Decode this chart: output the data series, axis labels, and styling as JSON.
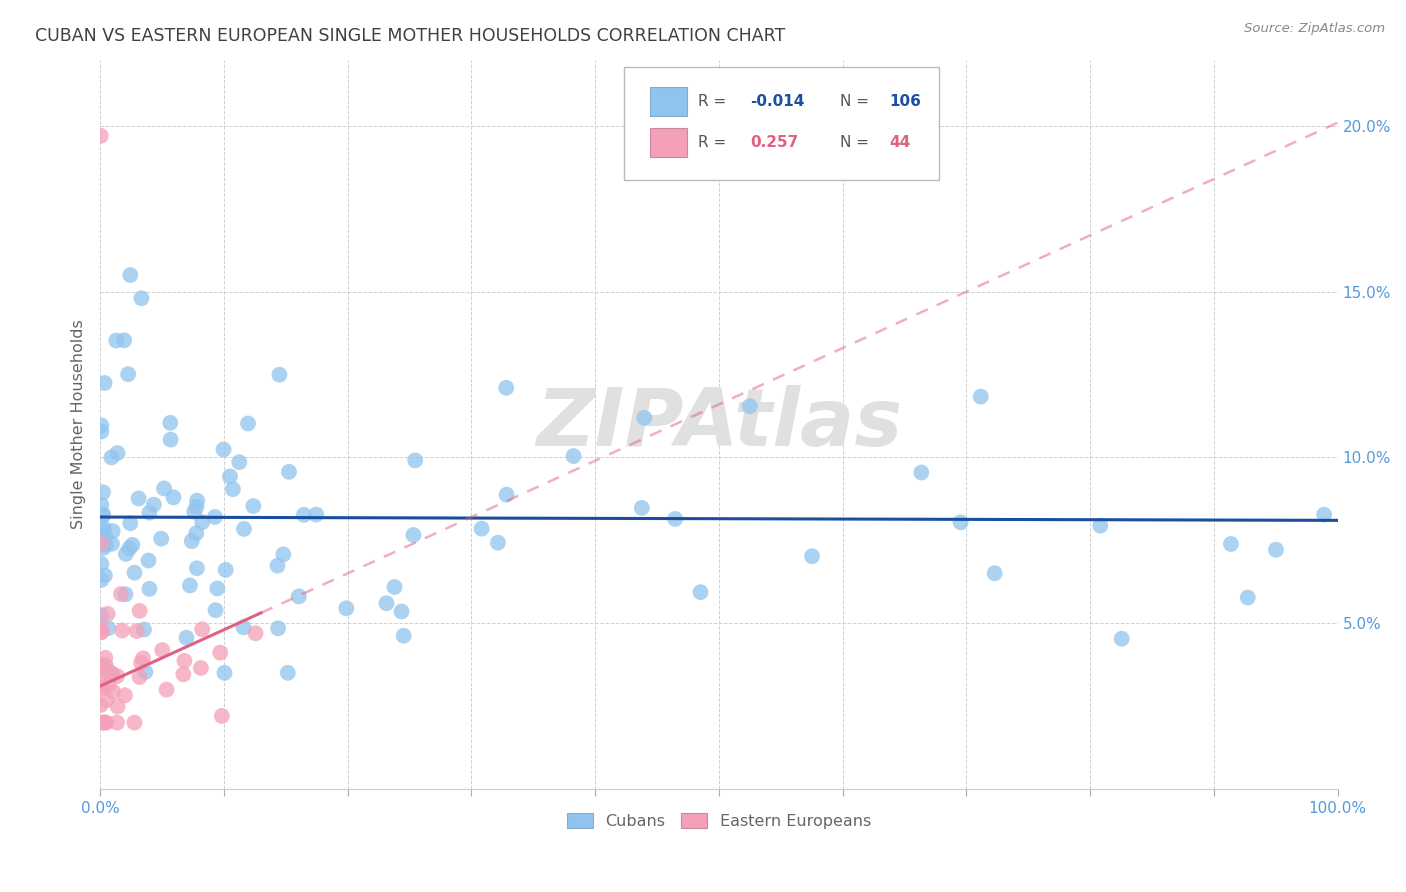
{
  "title": "CUBAN VS EASTERN EUROPEAN SINGLE MOTHER HOUSEHOLDS CORRELATION CHART",
  "source": "Source: ZipAtlas.com",
  "ylabel": "Single Mother Households",
  "xlim": [
    0,
    1.0
  ],
  "ylim": [
    0,
    0.22
  ],
  "ytick_vals": [
    0.05,
    0.1,
    0.15,
    0.2
  ],
  "ytick_labels": [
    "5.0%",
    "10.0%",
    "15.0%",
    "20.0%"
  ],
  "xtick_vals": [
    0.0,
    0.1,
    0.2,
    0.3,
    0.4,
    0.5,
    0.6,
    0.7,
    0.8,
    0.9,
    1.0
  ],
  "xtick_edge_labels": {
    "0": "0.0%",
    "10": "100.0%"
  },
  "legend_r_blue": "-0.014",
  "legend_n_blue": "106",
  "legend_r_pink": "0.257",
  "legend_n_pink": "44",
  "blue_color": "#90C4EE",
  "pink_color": "#F4A0B8",
  "blue_line_color": "#1A4FA0",
  "pink_line_color": "#E06080",
  "watermark_color": "#DDDDDD",
  "bg_color": "#FFFFFF",
  "grid_color": "#CCCCCC",
  "title_color": "#404040",
  "axis_tick_color": "#5599DD",
  "ylabel_color": "#666666",
  "legend_label_color": "#666666",
  "source_color": "#888888",
  "blue_reg_intercept": 0.082,
  "blue_reg_slope": -0.001,
  "pink_reg_intercept": 0.031,
  "pink_reg_slope": 0.17
}
